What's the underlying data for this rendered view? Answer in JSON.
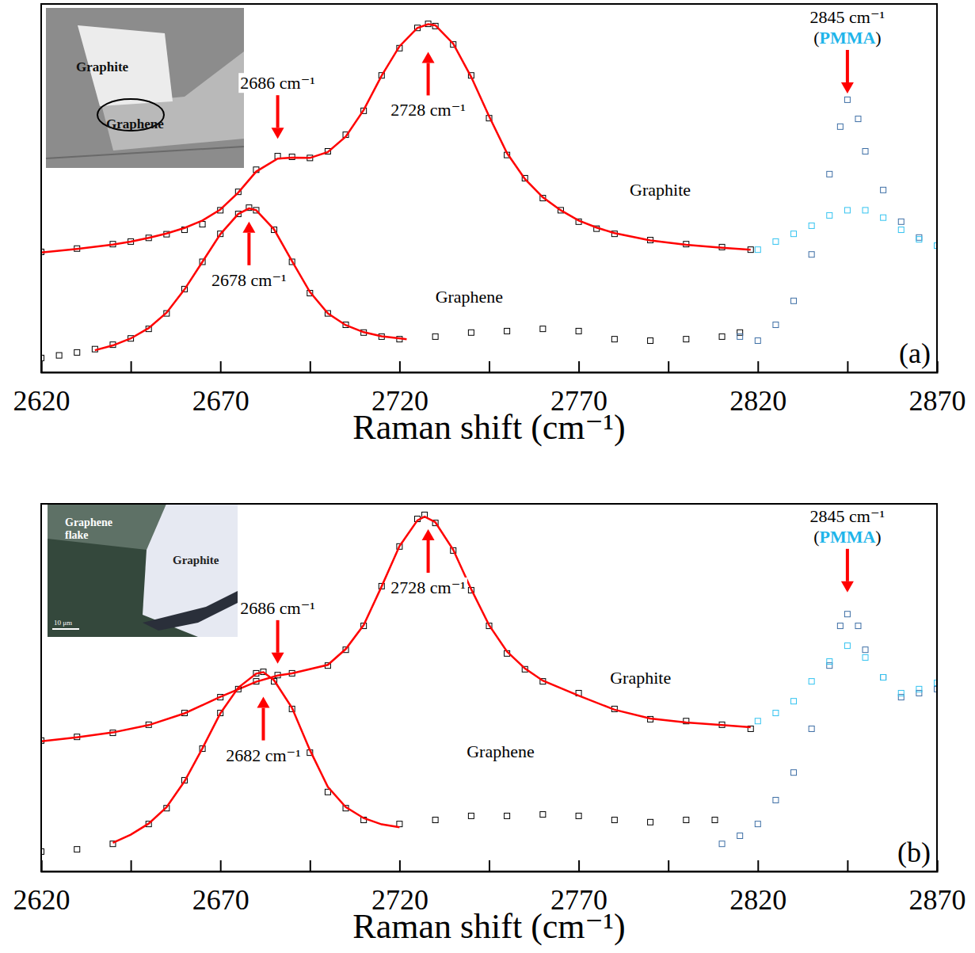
{
  "chart_data": [
    {
      "type": "scatter",
      "panel": "(a)",
      "xlabel": "Raman shift (cm⁻¹)",
      "xlim": [
        2620,
        2870
      ],
      "ylim": [
        0,
        100
      ],
      "xticks": [
        2620,
        2670,
        2720,
        2770,
        2820,
        2870
      ],
      "x_minor_ticks": [
        2645,
        2695,
        2745,
        2795,
        2845
      ],
      "tick_labels": "x",
      "series": [
        {
          "name": "Graphite",
          "type": "scatter",
          "marker": "square",
          "color": "#000000",
          "x": [
            2620,
            2630,
            2640,
            2645,
            2650,
            2655,
            2660,
            2665,
            2670,
            2675,
            2680,
            2686,
            2690,
            2695,
            2700,
            2705,
            2710,
            2715,
            2720,
            2725,
            2728,
            2730,
            2735,
            2740,
            2745,
            2750,
            2755,
            2760,
            2765,
            2770,
            2775,
            2780,
            2790,
            2800,
            2810,
            2818
          ],
          "values": [
            32.7,
            33.6,
            34.8,
            35.5,
            36.5,
            37.5,
            38.7,
            40.2,
            44.0,
            49.0,
            55.0,
            58.7,
            58.5,
            58.2,
            60.0,
            64.5,
            71.0,
            80.6,
            88.0,
            93.5,
            94.6,
            94.0,
            89.0,
            80.6,
            69.0,
            59.0,
            52.7,
            47.3,
            44.0,
            40.9,
            39.0,
            37.6,
            35.9,
            34.8,
            34.0,
            33.3
          ]
        },
        {
          "type": "line",
          "line_style": "solid",
          "color": "#ff0000",
          "x": [
            2620,
            2630,
            2640,
            2645,
            2650,
            2655,
            2660,
            2665,
            2670,
            2675,
            2680,
            2686,
            2690,
            2695,
            2700,
            2705,
            2710,
            2715,
            2720,
            2725,
            2728,
            2730,
            2735,
            2740,
            2745,
            2750,
            2755,
            2760,
            2765,
            2770,
            2775,
            2780,
            2790,
            2800,
            2810,
            2818
          ],
          "values": [
            32.5,
            33.5,
            34.7,
            35.5,
            36.5,
            37.7,
            39.2,
            41.2,
            44.2,
            48.8,
            54.5,
            58.0,
            58.3,
            58.2,
            59.8,
            64.0,
            71.2,
            80.5,
            88.5,
            93.5,
            94.5,
            94.2,
            89.2,
            80.2,
            69.5,
            59.5,
            52.5,
            47.5,
            44.0,
            41.2,
            39.3,
            37.8,
            35.8,
            34.6,
            33.8,
            33.3
          ]
        },
        {
          "name": "Graphene",
          "type": "scatter",
          "marker": "square",
          "color": "#000000",
          "x": [
            2620,
            2625,
            2630,
            2635,
            2640,
            2645,
            2650,
            2655,
            2660,
            2665,
            2670,
            2675,
            2678,
            2680,
            2685,
            2690,
            2695,
            2700,
            2705,
            2710,
            2715,
            2720,
            2730,
            2740,
            2750,
            2760,
            2770,
            2780,
            2790,
            2800,
            2810,
            2815
          ],
          "values": [
            3.9,
            4.6,
            5.4,
            6.3,
            7.5,
            9.2,
            11.8,
            16.0,
            22.6,
            30.0,
            37.6,
            43.0,
            44.7,
            44.0,
            38.7,
            30.0,
            21.5,
            16.0,
            12.9,
            10.8,
            9.7,
            9.0,
            9.7,
            10.8,
            11.2,
            11.8,
            11.2,
            9.0,
            8.6,
            9.0,
            9.7,
            10.8
          ]
        },
        {
          "type": "line",
          "line_style": "solid",
          "color": "#ff0000",
          "x": [
            2635,
            2640,
            2645,
            2650,
            2655,
            2660,
            2665,
            2670,
            2675,
            2678,
            2680,
            2685,
            2690,
            2695,
            2700,
            2705,
            2710,
            2715,
            2722
          ],
          "values": [
            6.0,
            7.3,
            9.2,
            12.0,
            16.2,
            22.5,
            30.0,
            37.5,
            43.0,
            44.5,
            44.0,
            38.8,
            30.2,
            21.8,
            16.0,
            12.8,
            10.9,
            9.8,
            9.0
          ]
        },
        {
          "type": "scatter",
          "marker": "square",
          "color": "#3d6ea5",
          "x": [
            2815,
            2820,
            2825,
            2830,
            2835,
            2840,
            2843,
            2845,
            2848,
            2850,
            2855,
            2860,
            2865,
            2870
          ],
          "values": [
            9.7,
            8.6,
            12.9,
            19.4,
            32.0,
            53.8,
            66.7,
            74.0,
            68.8,
            60.0,
            49.5,
            40.9,
            36.6,
            34.4
          ]
        },
        {
          "type": "scatter",
          "marker": "square",
          "color": "#33c3f0",
          "x": [
            2820,
            2825,
            2830,
            2835,
            2840,
            2845,
            2850,
            2855,
            2860,
            2865,
            2870
          ],
          "values": [
            33.3,
            35.5,
            37.6,
            39.8,
            42.6,
            44.0,
            44.0,
            42.0,
            38.7,
            36.1,
            34.4
          ]
        }
      ],
      "annotations": [
        {
          "text": "2686 cm⁻¹",
          "x": 2686,
          "y": 63.4,
          "direction": "down"
        },
        {
          "text": "2728 cm⁻¹",
          "x": 2728,
          "y": 87.0,
          "direction": "up"
        },
        {
          "text": "2678 cm⁻¹",
          "x": 2678,
          "y": 40.9,
          "direction": "up"
        },
        {
          "text": "2845 cm⁻¹",
          "note": "(PMMA)",
          "x": 2845,
          "y": 75.7,
          "direction": "down"
        }
      ],
      "inset": {
        "labels": [
          "Graphite",
          "Graphene"
        ]
      }
    },
    {
      "type": "scatter",
      "panel": "(b)",
      "xlabel": "Raman shift (cm⁻¹)",
      "xlim": [
        2620,
        2870
      ],
      "ylim": [
        0,
        100
      ],
      "xticks": [
        2620,
        2670,
        2720,
        2770,
        2820,
        2870
      ],
      "x_minor_ticks": [
        2645,
        2695,
        2745,
        2795,
        2845
      ],
      "tick_labels": "x",
      "series": [
        {
          "name": "Graphite",
          "type": "scatter",
          "marker": "square",
          "color": "#000000",
          "x": [
            2620,
            2630,
            2640,
            2650,
            2660,
            2670,
            2680,
            2686,
            2690,
            2700,
            2705,
            2710,
            2715,
            2720,
            2725,
            2727,
            2730,
            2735,
            2740,
            2745,
            2750,
            2755,
            2760,
            2770,
            2780,
            2790,
            2800,
            2810,
            2818
          ],
          "values": [
            35.6,
            36.6,
            37.7,
            39.9,
            43.1,
            47.4,
            51.7,
            53.4,
            53.9,
            56.0,
            60.3,
            66.8,
            77.6,
            88.4,
            95.9,
            97.0,
            94.8,
            87.3,
            76.5,
            66.8,
            59.3,
            55.0,
            51.7,
            48.5,
            44.2,
            41.4,
            40.9,
            39.9,
            38.8
          ]
        },
        {
          "type": "line",
          "line_style": "solid",
          "color": "#ff0000",
          "x": [
            2620,
            2630,
            2640,
            2650,
            2660,
            2670,
            2680,
            2686,
            2690,
            2700,
            2705,
            2710,
            2715,
            2720,
            2725,
            2727,
            2730,
            2735,
            2740,
            2745,
            2750,
            2755,
            2760,
            2770,
            2780,
            2790,
            2800,
            2810,
            2818
          ],
          "values": [
            35.4,
            36.5,
            37.8,
            39.8,
            43.0,
            47.5,
            51.6,
            53.3,
            53.9,
            56.2,
            60.5,
            67.0,
            77.5,
            88.5,
            95.5,
            96.5,
            95.0,
            87.5,
            76.8,
            67.0,
            59.8,
            55.2,
            51.9,
            47.8,
            44.0,
            41.6,
            40.5,
            39.8,
            39.2
          ]
        },
        {
          "name": "Graphene",
          "type": "scatter",
          "marker": "square",
          "color": "#000000",
          "x": [
            2620,
            2630,
            2640,
            2650,
            2655,
            2660,
            2665,
            2670,
            2675,
            2680,
            2682,
            2685,
            2690,
            2695,
            2700,
            2705,
            2710,
            2720,
            2730,
            2740,
            2750,
            2760,
            2770,
            2780,
            2790,
            2800,
            2808
          ],
          "values": [
            5.4,
            6.0,
            7.5,
            12.9,
            17.2,
            24.8,
            33.4,
            43.1,
            49.6,
            53.9,
            54.3,
            51.7,
            44.2,
            32.3,
            21.6,
            17.2,
            14.0,
            12.9,
            14.0,
            15.1,
            15.1,
            15.5,
            15.1,
            14.0,
            13.4,
            14.0,
            14.0
          ]
        },
        {
          "type": "line",
          "line_style": "solid",
          "color": "#ff0000",
          "x": [
            2640,
            2645,
            2650,
            2655,
            2660,
            2665,
            2670,
            2675,
            2680,
            2682,
            2685,
            2690,
            2695,
            2700,
            2705,
            2710,
            2715,
            2720
          ],
          "values": [
            7.8,
            10.0,
            13.0,
            17.5,
            24.5,
            33.5,
            43.0,
            50.0,
            53.8,
            54.2,
            52.0,
            44.5,
            33.0,
            23.0,
            17.5,
            14.5,
            12.8,
            12.0
          ]
        },
        {
          "type": "scatter",
          "marker": "square",
          "color": "#3d6ea5",
          "x": [
            2810,
            2815,
            2820,
            2825,
            2830,
            2835,
            2840,
            2843,
            2845,
            2848,
            2850,
            2855,
            2860,
            2865,
            2870
          ],
          "values": [
            7.5,
            9.7,
            12.9,
            19.4,
            26.9,
            38.8,
            56.0,
            66.8,
            70.0,
            66.8,
            60.3,
            52.8,
            47.4,
            48.5,
            49.6
          ]
        },
        {
          "type": "scatter",
          "marker": "square",
          "color": "#33c3f0",
          "x": [
            2820,
            2825,
            2830,
            2835,
            2840,
            2845,
            2850,
            2855,
            2860,
            2865,
            2870
          ],
          "values": [
            40.9,
            43.1,
            46.3,
            51.7,
            57.1,
            61.4,
            58.2,
            52.8,
            48.5,
            49.6,
            51.3
          ]
        }
      ],
      "annotations": [
        {
          "text": "2686 cm⁻¹",
          "x": 2686,
          "y": 56.5,
          "direction": "down"
        },
        {
          "text": "2728 cm⁻¹",
          "x": 2728,
          "y": 93.1,
          "direction": "up"
        },
        {
          "text": "2682 cm⁻¹",
          "x": 2682,
          "y": 47.5,
          "direction": "up"
        },
        {
          "text": "2845 cm⁻¹",
          "note": "(PMMA)",
          "x": 2845,
          "y": 75.9,
          "direction": "down"
        }
      ],
      "inset": {
        "labels": [
          "Graphene flake",
          "Graphite",
          "10 μm"
        ]
      }
    }
  ]
}
